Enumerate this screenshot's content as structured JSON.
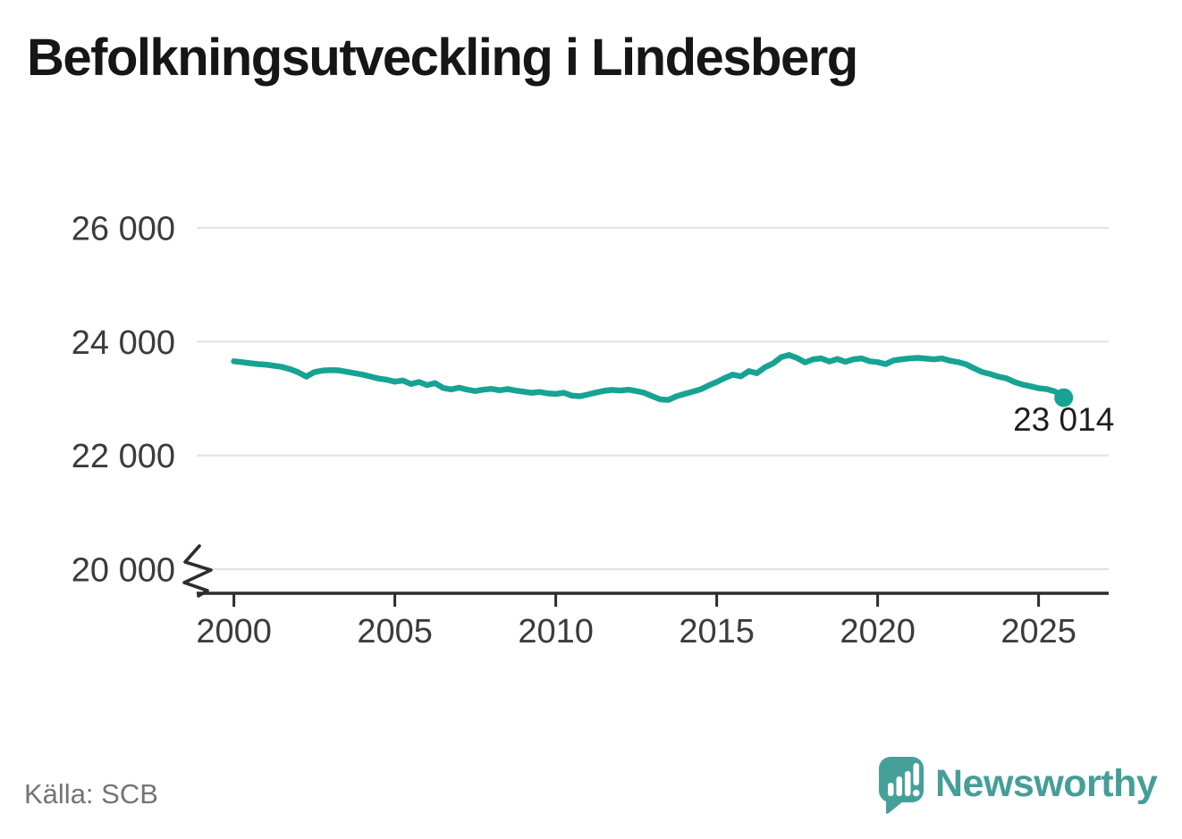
{
  "title": "Befolkningsutveckling i Lindesberg",
  "source": "Källa: SCB",
  "branding": {
    "name": "Newsworthy",
    "icon": "newsworthy-speech-bubble-barchart-icon",
    "icon_color": "#45a09a",
    "text_color": "#459e98"
  },
  "colors": {
    "background": "#ffffff",
    "line": "#17a394",
    "grid": "#e2e2e2",
    "axis": "#2d2d2d",
    "tick_text": "#3b3b3b",
    "title_text": "#161616",
    "label_text": "#1e1e1e",
    "source_text": "#747474"
  },
  "chart_data": {
    "type": "line",
    "title": "Befolkningsutveckling i Lindesberg",
    "xlabel": "",
    "ylabel": "",
    "source": "Källa: SCB",
    "grid": "horizontal",
    "legend": "none",
    "xlim": [
      1998.8,
      2027.3
    ],
    "ylim": [
      19560,
      26000
    ],
    "y_axis_break": true,
    "x_ticks": [
      2000,
      2005,
      2010,
      2015,
      2020,
      2025
    ],
    "y_ticks": [
      26000,
      24000,
      22000,
      20000
    ],
    "y_tick_labels": [
      "26 000",
      "24 000",
      "22 000",
      "20 000"
    ],
    "series": [
      {
        "name": "Befolkning i Lindesberg",
        "color": "#17a394",
        "end_value": 23014,
        "end_label": "23 014",
        "points": [
          [
            2000.0,
            23655
          ],
          [
            2000.25,
            23640
          ],
          [
            2000.5,
            23620
          ],
          [
            2000.75,
            23605
          ],
          [
            2001.0,
            23595
          ],
          [
            2001.25,
            23575
          ],
          [
            2001.5,
            23555
          ],
          [
            2001.75,
            23515
          ],
          [
            2002.0,
            23460
          ],
          [
            2002.25,
            23385
          ],
          [
            2002.5,
            23465
          ],
          [
            2002.75,
            23490
          ],
          [
            2003.0,
            23500
          ],
          [
            2003.25,
            23495
          ],
          [
            2003.5,
            23470
          ],
          [
            2003.75,
            23445
          ],
          [
            2004.0,
            23420
          ],
          [
            2004.25,
            23385
          ],
          [
            2004.5,
            23350
          ],
          [
            2004.75,
            23330
          ],
          [
            2005.0,
            23295
          ],
          [
            2005.25,
            23315
          ],
          [
            2005.5,
            23255
          ],
          [
            2005.75,
            23290
          ],
          [
            2006.0,
            23235
          ],
          [
            2006.25,
            23270
          ],
          [
            2006.5,
            23185
          ],
          [
            2006.75,
            23160
          ],
          [
            2007.0,
            23190
          ],
          [
            2007.25,
            23155
          ],
          [
            2007.5,
            23130
          ],
          [
            2007.75,
            23155
          ],
          [
            2008.0,
            23170
          ],
          [
            2008.25,
            23145
          ],
          [
            2008.5,
            23165
          ],
          [
            2008.75,
            23140
          ],
          [
            2009.0,
            23120
          ],
          [
            2009.25,
            23100
          ],
          [
            2009.5,
            23115
          ],
          [
            2009.75,
            23090
          ],
          [
            2010.0,
            23080
          ],
          [
            2010.25,
            23100
          ],
          [
            2010.5,
            23050
          ],
          [
            2010.75,
            23040
          ],
          [
            2011.0,
            23070
          ],
          [
            2011.25,
            23105
          ],
          [
            2011.5,
            23135
          ],
          [
            2011.75,
            23150
          ],
          [
            2012.0,
            23140
          ],
          [
            2012.25,
            23155
          ],
          [
            2012.5,
            23130
          ],
          [
            2012.75,
            23100
          ],
          [
            2013.0,
            23040
          ],
          [
            2013.25,
            22985
          ],
          [
            2013.5,
            22975
          ],
          [
            2013.75,
            23040
          ],
          [
            2014.0,
            23080
          ],
          [
            2014.25,
            23120
          ],
          [
            2014.5,
            23160
          ],
          [
            2014.75,
            23230
          ],
          [
            2015.0,
            23290
          ],
          [
            2015.25,
            23360
          ],
          [
            2015.5,
            23420
          ],
          [
            2015.75,
            23390
          ],
          [
            2016.0,
            23480
          ],
          [
            2016.25,
            23445
          ],
          [
            2016.5,
            23550
          ],
          [
            2016.75,
            23615
          ],
          [
            2017.0,
            23725
          ],
          [
            2017.25,
            23765
          ],
          [
            2017.5,
            23710
          ],
          [
            2017.75,
            23635
          ],
          [
            2018.0,
            23690
          ],
          [
            2018.25,
            23705
          ],
          [
            2018.5,
            23650
          ],
          [
            2018.75,
            23695
          ],
          [
            2019.0,
            23645
          ],
          [
            2019.25,
            23690
          ],
          [
            2019.5,
            23705
          ],
          [
            2019.75,
            23655
          ],
          [
            2020.0,
            23640
          ],
          [
            2020.25,
            23605
          ],
          [
            2020.5,
            23670
          ],
          [
            2020.75,
            23690
          ],
          [
            2021.0,
            23705
          ],
          [
            2021.25,
            23715
          ],
          [
            2021.5,
            23700
          ],
          [
            2021.75,
            23690
          ],
          [
            2022.0,
            23705
          ],
          [
            2022.25,
            23665
          ],
          [
            2022.5,
            23640
          ],
          [
            2022.75,
            23600
          ],
          [
            2023.0,
            23530
          ],
          [
            2023.25,
            23465
          ],
          [
            2023.5,
            23430
          ],
          [
            2023.75,
            23385
          ],
          [
            2024.0,
            23355
          ],
          [
            2024.25,
            23290
          ],
          [
            2024.5,
            23245
          ],
          [
            2024.75,
            23215
          ],
          [
            2025.0,
            23180
          ],
          [
            2025.25,
            23165
          ],
          [
            2025.5,
            23125
          ],
          [
            2025.67,
            23075
          ],
          [
            2025.78,
            23014
          ]
        ]
      }
    ]
  }
}
